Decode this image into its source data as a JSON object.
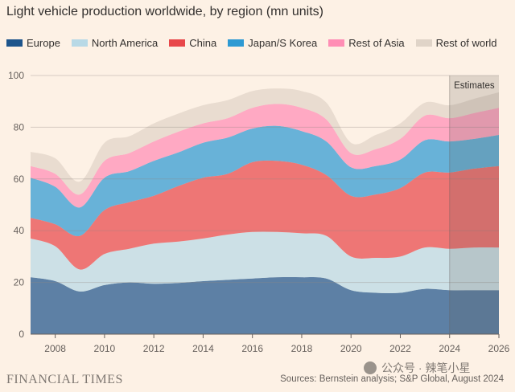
{
  "chart_data": {
    "type": "area",
    "stacked": true,
    "title": "Light vehicle production worldwide, by region (mn units)",
    "x": [
      2007,
      2008,
      2009,
      2010,
      2011,
      2012,
      2013,
      2014,
      2015,
      2016,
      2017,
      2018,
      2019,
      2020,
      2021,
      2022,
      2023,
      2024,
      2025,
      2026
    ],
    "x_ticks": [
      "2008",
      "2010",
      "2012",
      "2014",
      "2016",
      "2018",
      "2020",
      "2022",
      "2024",
      "2026"
    ],
    "y_ticks": [
      "0",
      "20",
      "40",
      "60",
      "80",
      "100"
    ],
    "ylim": [
      0,
      100
    ],
    "grid": "horizontal",
    "legend_position": "top",
    "estimates_label": "Estimates",
    "estimates_from": 2024,
    "series": [
      {
        "name": "Europe",
        "color": "#1e558c",
        "values": [
          22,
          20.5,
          16.5,
          19,
          20,
          19.5,
          19.8,
          20.5,
          21,
          21.5,
          22,
          22,
          21.5,
          17,
          16,
          16,
          17.5,
          17,
          17,
          17
        ]
      },
      {
        "name": "North America",
        "color": "#b8d9e6",
        "values": [
          15,
          13.5,
          8.5,
          12,
          13,
          15.5,
          16,
          16.5,
          17.5,
          18,
          17.5,
          17,
          16.5,
          13,
          13.5,
          14,
          16,
          16,
          16.5,
          16.5
        ]
      },
      {
        "name": "China",
        "color": "#e8474a",
        "values": [
          8,
          8.5,
          13,
          17,
          18,
          18.5,
          21.5,
          23.5,
          23.5,
          27,
          27.5,
          26.5,
          23.5,
          23.5,
          24.5,
          26.5,
          29,
          29.5,
          30.5,
          31.5
        ]
      },
      {
        "name": "Japan/S Korea",
        "color": "#2e9ad3",
        "values": [
          15.5,
          14.5,
          11,
          12.5,
          12,
          13.5,
          13,
          13.5,
          14,
          13,
          13.5,
          13,
          13,
          11,
          11,
          11,
          12.5,
          12,
          11.5,
          12
        ]
      },
      {
        "name": "Rest of Asia",
        "color": "#ff8eb5",
        "values": [
          4.5,
          5,
          5,
          6.5,
          7,
          7.5,
          8,
          7.5,
          7.5,
          8,
          8.5,
          9,
          8.5,
          5.5,
          6.5,
          8,
          9.5,
          9,
          10,
          10.5
        ]
      },
      {
        "name": "Rest of world",
        "color": "#e0d4c8",
        "values": [
          5.5,
          6,
          5,
          7,
          6.5,
          7,
          7,
          7,
          7,
          6.5,
          6,
          6.5,
          6.5,
          4,
          5.5,
          6,
          5,
          5,
          5.5,
          6
        ]
      }
    ]
  },
  "footer": {
    "brand": "FINANCIAL TIMES",
    "source": "Sources: Bernstein analysis; S&P Global, August 2024",
    "watermark": "公众号 · 辣笔小星"
  }
}
